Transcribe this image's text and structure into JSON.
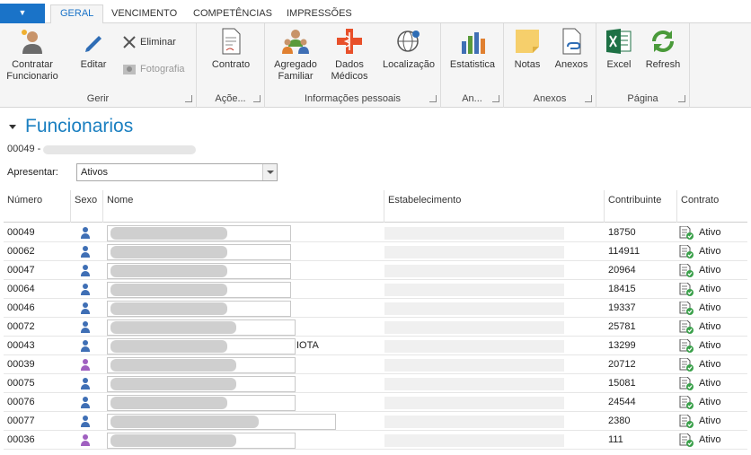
{
  "tabs": [
    {
      "label": "GERAL",
      "active": true
    },
    {
      "label": "VENCIMENTO",
      "active": false
    },
    {
      "label": "COMPETÊNCIAS",
      "active": false
    },
    {
      "label": "IMPRESSÕES",
      "active": false
    }
  ],
  "ribbon": {
    "groups": [
      {
        "label": "Gerir"
      },
      {
        "label": "Açõe..."
      },
      {
        "label": "Informações pessoais"
      },
      {
        "label": "An..."
      },
      {
        "label": "Anexos"
      },
      {
        "label": "Página"
      }
    ],
    "buttons": {
      "contratar": "Contratar Funcionario",
      "editar": "Editar",
      "eliminar": "Eliminar",
      "fotografia": "Fotografia",
      "contrato": "Contrato",
      "agregado": "Agregado Familiar",
      "dados_medicos": "Dados Médicos",
      "localizacao": "Localização",
      "estatistica": "Estatistica",
      "notas": "Notas",
      "anexos": "Anexos",
      "excel": "Excel",
      "refresh": "Refresh"
    }
  },
  "page": {
    "title": "Funcionarios",
    "subtitle": "00049 - ",
    "filter_label": "Apresentar:",
    "filter_value": "Ativos"
  },
  "columns": {
    "numero": "Número",
    "sexo": "Sexo",
    "nome": "Nome",
    "estabelecimento": "Estabelecimento",
    "contribuinte": "Contribuinte",
    "contrato": "Contrato"
  },
  "colors": {
    "male": "#3f6fb5",
    "female": "#a060c0",
    "accent": "#1a73c8"
  },
  "rows": [
    {
      "numero": "00049",
      "sexo": "male",
      "nome_suffix": "",
      "contribuinte": "18750",
      "contrato": "Ativo"
    },
    {
      "numero": "00062",
      "sexo": "male",
      "nome_suffix": "",
      "contribuinte": "114911",
      "contrato": "Ativo"
    },
    {
      "numero": "00047",
      "sexo": "male",
      "nome_suffix": "",
      "contribuinte": "20964",
      "contrato": "Ativo"
    },
    {
      "numero": "00064",
      "sexo": "male",
      "nome_suffix": "",
      "contribuinte": "18415",
      "contrato": "Ativo"
    },
    {
      "numero": "00046",
      "sexo": "male",
      "nome_suffix": "",
      "contribuinte": "19337",
      "contrato": "Ativo"
    },
    {
      "numero": "00072",
      "sexo": "male",
      "nome_suffix": "",
      "contribuinte": "25781",
      "contrato": "Ativo"
    },
    {
      "numero": "00043",
      "sexo": "male",
      "nome_suffix": "IOTA",
      "contribuinte": "13299",
      "contrato": "Ativo"
    },
    {
      "numero": "00039",
      "sexo": "female",
      "nome_suffix": "",
      "contribuinte": "20712",
      "contrato": "Ativo"
    },
    {
      "numero": "00075",
      "sexo": "male",
      "nome_suffix": "",
      "contribuinte": "15081",
      "contrato": "Ativo"
    },
    {
      "numero": "00076",
      "sexo": "male",
      "nome_suffix": "",
      "contribuinte": "24544",
      "contrato": "Ativo"
    },
    {
      "numero": "00077",
      "sexo": "male",
      "nome_suffix": "",
      "contribuinte": "2380",
      "contrato": "Ativo"
    },
    {
      "numero": "00036",
      "sexo": "female",
      "nome_suffix": "",
      "contribuinte": "111",
      "contrato": "Ativo"
    }
  ]
}
